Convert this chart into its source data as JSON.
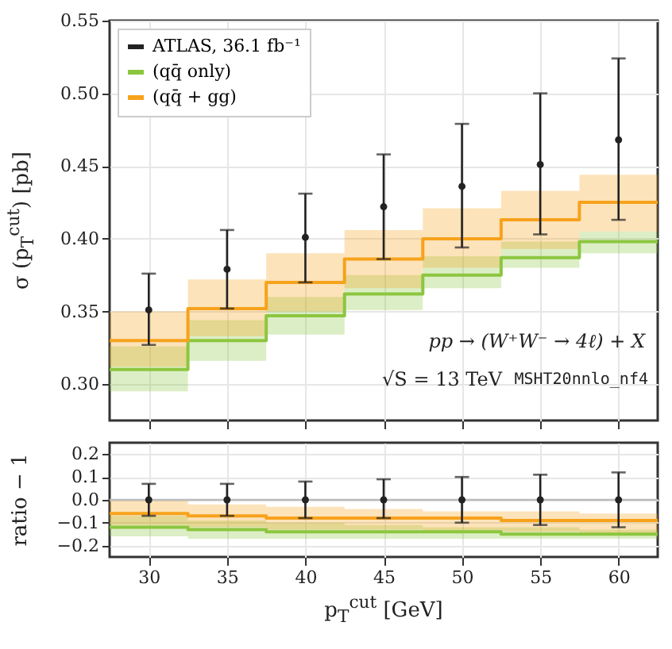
{
  "chart_data": [
    {
      "type": "step",
      "ylabel": "σ (p$_{T}$$^{cut}$) [pb]",
      "xlim": [
        27.5,
        62.5
      ],
      "xticks": [
        30,
        35,
        40,
        45,
        50,
        55,
        60
      ],
      "ylim": [
        0.275,
        0.55
      ],
      "yticks": [
        {
          "value": 0.3,
          "label": "0.30"
        },
        0.35,
        {
          "value": 0.4,
          "label": "0.40"
        },
        0.45,
        {
          "value": 0.5,
          "label": "0.50"
        },
        0.55
      ],
      "grid": true,
      "legend": "top left",
      "tick_labels": "y",
      "annotations": [
        "pp → (W⁺W⁻ → 4ℓ) + X",
        "√S = 13 TeV",
        "MSHT20nnlo_nf4"
      ],
      "series": [
        {
          "name": "ATLAS, 36.1 fb⁻¹",
          "type": "scatter",
          "marker": "circle",
          "color": "#222222",
          "x": [
            30,
            35,
            40,
            45,
            50,
            55,
            60
          ],
          "values": [
            0.351,
            0.379,
            0.401,
            0.422,
            0.436,
            0.451,
            0.468
          ],
          "errors": [
            [
              0.327,
              0.376
            ],
            [
              0.352,
              0.406
            ],
            [
              0.37,
              0.431
            ],
            [
              0.386,
              0.458
            ],
            [
              0.394,
              0.479
            ],
            [
              0.403,
              0.5
            ],
            [
              0.413,
              0.524
            ]
          ]
        },
        {
          "name": "(qq̄ only)",
          "color": "#8cc63f",
          "x": [
            27.5,
            32.5,
            37.5,
            42.5,
            47.5,
            52.5,
            57.5,
            62.5
          ],
          "values": [
            0.31,
            0.33,
            0.347,
            0.362,
            0.375,
            0.387,
            0.398,
            0.398
          ],
          "lower": [
            0.295,
            0.316,
            0.334,
            0.351,
            0.366,
            0.38,
            0.39,
            0.39
          ],
          "upper": [
            0.326,
            0.344,
            0.36,
            0.375,
            0.388,
            0.398,
            0.405,
            0.405
          ]
        },
        {
          "name": "(qq̄ + gg)",
          "color": "#f7a21b",
          "x": [
            27.5,
            32.5,
            37.5,
            42.5,
            47.5,
            52.5,
            57.5,
            62.5
          ],
          "values": [
            0.33,
            0.352,
            0.37,
            0.386,
            0.4,
            0.413,
            0.425,
            0.425
          ],
          "lower": [
            0.312,
            0.333,
            0.35,
            0.366,
            0.38,
            0.393,
            0.405,
            0.405
          ],
          "upper": [
            0.35,
            0.372,
            0.39,
            0.406,
            0.421,
            0.433,
            0.444,
            0.444
          ]
        }
      ]
    },
    {
      "type": "step",
      "ylabel": "ratio − 1",
      "xlabel": "p$_{T}$$^{cut}$ [GeV]",
      "xlim": [
        27.5,
        62.5
      ],
      "xticks": [
        30,
        35,
        40,
        45,
        50,
        55,
        60
      ],
      "ylim": [
        -0.25,
        0.25
      ],
      "yticks": [
        {
          "value": -0.2,
          "label": "−0.2"
        },
        {
          "value": -0.1,
          "label": "−0.1"
        },
        {
          "value": 0,
          "label": "0.0"
        },
        0.1,
        0.2
      ],
      "grid": true,
      "ref_lines": [
        {
          "axis": "y",
          "value": 0,
          "color": "#bbbbbb"
        }
      ],
      "series": [
        {
          "color": "#8cc63f",
          "x": [
            27.5,
            32.5,
            37.5,
            42.5,
            47.5,
            52.5,
            57.5,
            62.5
          ],
          "values": [
            -0.12,
            -0.13,
            -0.14,
            -0.14,
            -0.14,
            -0.15,
            -0.15,
            -0.15
          ],
          "lower": [
            -0.16,
            -0.17,
            -0.17,
            -0.17,
            -0.17,
            -0.17,
            -0.17,
            -0.17
          ],
          "upper": [
            -0.07,
            -0.09,
            -0.1,
            -0.11,
            -0.12,
            -0.12,
            -0.13,
            -0.13
          ]
        },
        {
          "color": "#f7a21b",
          "x": [
            27.5,
            32.5,
            37.5,
            42.5,
            47.5,
            52.5,
            57.5,
            62.5
          ],
          "values": [
            -0.06,
            -0.07,
            -0.08,
            -0.08,
            -0.08,
            -0.09,
            -0.09,
            -0.09
          ],
          "lower": [
            -0.11,
            -0.12,
            -0.13,
            -0.13,
            -0.14,
            -0.14,
            -0.15,
            -0.15
          ],
          "upper": [
            0.0,
            -0.02,
            -0.03,
            -0.04,
            -0.05,
            -0.05,
            -0.06,
            -0.06
          ]
        },
        {
          "type": "scatter",
          "marker": "circle",
          "color": "#222222",
          "x": [
            30,
            35,
            40,
            45,
            50,
            55,
            60
          ],
          "values": [
            0,
            0,
            0,
            0,
            0,
            0,
            0
          ],
          "errors": [
            [
              -0.07,
              0.07
            ],
            [
              -0.07,
              0.07
            ],
            [
              -0.08,
              0.08
            ],
            [
              -0.08,
              0.09
            ],
            [
              -0.1,
              0.1
            ],
            [
              -0.11,
              0.11
            ],
            [
              -0.12,
              0.12
            ]
          ]
        }
      ]
    }
  ]
}
